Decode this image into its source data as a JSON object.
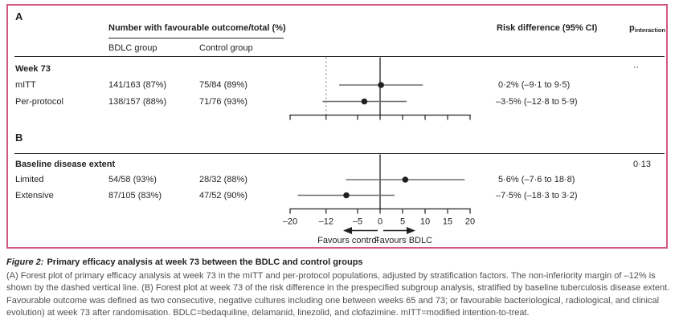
{
  "colors": {
    "border_pink": "#d0597c",
    "text_black": "#231f20",
    "ci_gray": "#6d6e71",
    "dashed_gray": "#8a8b8e",
    "caption_gray": "#515153"
  },
  "header": {
    "panel_a_label": "A",
    "panel_b_label": "B",
    "outcome_header": "Number with favourable outcome/total (%)",
    "bdlc_col": "BDLC group",
    "control_col": "Control group",
    "risk_header": "Risk difference (95% CI)",
    "p_label": "p",
    "p_sub": "interaction"
  },
  "axis": {
    "min": -20,
    "max": 20,
    "ticks": [
      -20,
      -12,
      -5,
      0,
      5,
      10,
      15,
      20
    ],
    "favours_left": "Favours control",
    "favours_right": "Favours BDLC"
  },
  "chart_data": [
    {
      "type": "forest",
      "panel": "A",
      "section": "Week 73",
      "p_interaction": "··",
      "xlim": [
        -20,
        20
      ],
      "reference_line": 0,
      "noninferiority_margin": -12,
      "rows": [
        {
          "label": "mITT",
          "bdlc": "141/163 (87%)",
          "control": "75/84 (89%)",
          "estimate": 0.2,
          "ci_low": -9.1,
          "ci_high": 9.5,
          "risk_text": "0·2% (–9·1 to 9·5)"
        },
        {
          "label": "Per-protocol",
          "bdlc": "138/157 (88%)",
          "control": "71/76 (93%)",
          "estimate": -3.5,
          "ci_low": -12.8,
          "ci_high": 5.9,
          "risk_text": "–3·5% (–12·8 to 5·9)"
        }
      ]
    },
    {
      "type": "forest",
      "panel": "B",
      "section": "Baseline disease extent",
      "p_interaction": "0·13",
      "xlim": [
        -20,
        20
      ],
      "reference_line": 0,
      "rows": [
        {
          "label": "Limited",
          "bdlc": "54/58 (93%)",
          "control": "28/32 (88%)",
          "estimate": 5.6,
          "ci_low": -7.6,
          "ci_high": 18.8,
          "risk_text": "5·6% (–7·6 to 18·8)"
        },
        {
          "label": "Extensive",
          "bdlc": "87/105 (83%)",
          "control": "47/52 (90%)",
          "estimate": -7.5,
          "ci_low": -18.3,
          "ci_high": 3.2,
          "risk_text": "–7·5% (–18·3 to 3·2)"
        }
      ]
    }
  ],
  "caption": {
    "title_prefix": "Figure 2:",
    "title": "Primary efficacy analysis at week 73 between the BDLC and control groups",
    "body": "(A) Forest plot of primary efficacy analysis at week 73 in the mITT and per-protocol populations, adjusted by stratification factors. The non-inferiority margin of –12% is shown by the dashed vertical line. (B) Forest plot at week 73 of the risk difference in the prespecified subgroup analysis, stratified by baseline tuberculosis disease extent. Favourable outcome was defined as two consecutive, negative cultures including one between weeks 65 and 73; or favourable bacteriological, radiological, and clinical evolution) at week 73 after randomisation. BDLC=bedaquiline, delamanid, linezolid, and clofazimine. mITT=modified intention-to-treat."
  }
}
